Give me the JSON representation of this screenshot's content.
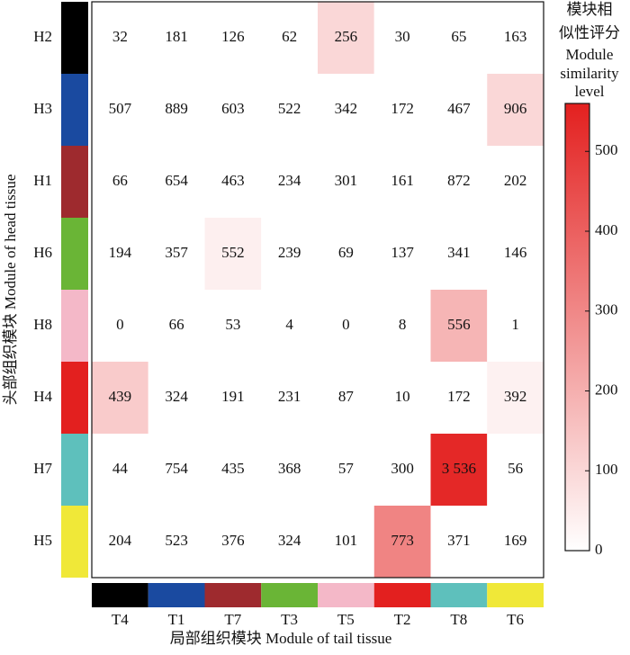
{
  "chart_data": {
    "type": "heatmap",
    "x_label": "局部组织模块 Module of tail tissue",
    "y_label": "头部组织模块 Module of head tissue",
    "colorbar_title": [
      "模块相",
      "似性评分",
      "Module",
      "similarity",
      "level"
    ],
    "rows": [
      "H2",
      "H3",
      "H1",
      "H6",
      "H8",
      "H4",
      "H7",
      "H5"
    ],
    "columns": [
      "T4",
      "T1",
      "T7",
      "T3",
      "T5",
      "T2",
      "T8",
      "T6"
    ],
    "module_colors": [
      "#000000",
      "#1a4aa0",
      "#9e2a2e",
      "#6ab536",
      "#f4b8c8",
      "#e3201f",
      "#5ec0bc",
      "#f0e838"
    ],
    "row_colors": [
      "#000000",
      "#1a4aa0",
      "#9e2a2e",
      "#6ab536",
      "#f4b8c8",
      "#e3201f",
      "#5ec0bc",
      "#f0e838"
    ],
    "values": [
      [
        32,
        181,
        126,
        62,
        256,
        30,
        65,
        163
      ],
      [
        507,
        889,
        603,
        522,
        342,
        172,
        467,
        906
      ],
      [
        66,
        654,
        463,
        234,
        301,
        161,
        872,
        202
      ],
      [
        194,
        357,
        552,
        239,
        69,
        137,
        341,
        146
      ],
      [
        0,
        66,
        53,
        4,
        0,
        8,
        556,
        1
      ],
      [
        439,
        324,
        191,
        231,
        87,
        10,
        172,
        392
      ],
      [
        44,
        754,
        435,
        368,
        57,
        300,
        3536,
        56
      ],
      [
        204,
        523,
        376,
        324,
        101,
        773,
        371,
        169
      ]
    ],
    "value_labels": {
      "6": {
        "6": "3 536"
      }
    },
    "similarity": [
      [
        0,
        0,
        0,
        0,
        100,
        0,
        0,
        0
      ],
      [
        0,
        0,
        0,
        0,
        0,
        0,
        0,
        100
      ],
      [
        0,
        0,
        0,
        0,
        0,
        0,
        0,
        0
      ],
      [
        0,
        0,
        40,
        0,
        0,
        0,
        0,
        0
      ],
      [
        0,
        0,
        0,
        0,
        0,
        0,
        185,
        0
      ],
      [
        130,
        0,
        0,
        0,
        0,
        0,
        0,
        35
      ],
      [
        0,
        0,
        0,
        0,
        0,
        0,
        540,
        0
      ],
      [
        0,
        0,
        0,
        0,
        0,
        310,
        0,
        0
      ]
    ],
    "color_low": "#ffffff",
    "color_high": "#e3201f",
    "clim": [
      0,
      560
    ],
    "cticks": [
      0,
      100,
      200,
      300,
      400,
      500
    ]
  }
}
